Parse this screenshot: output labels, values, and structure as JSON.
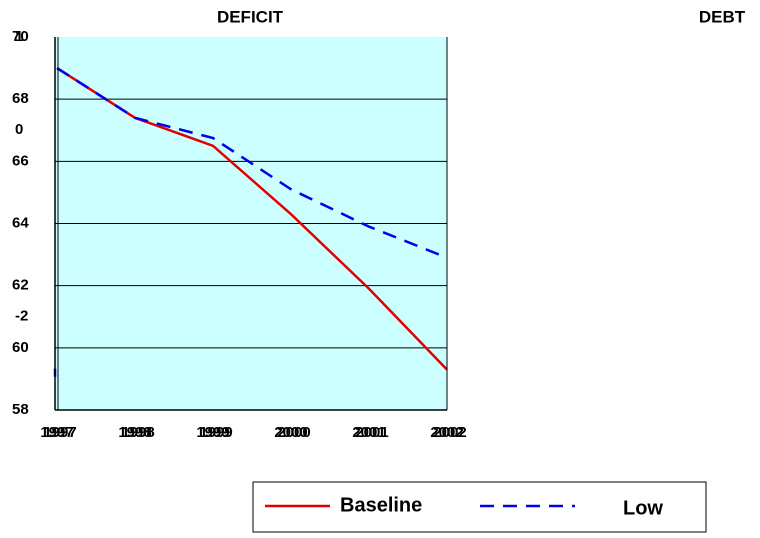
{
  "chart_data": [
    {
      "type": "line",
      "title": "DEFICIT",
      "categories": [
        "1997",
        "1998",
        "1999",
        "2000",
        "2001",
        "2002"
      ],
      "series": [
        {
          "name": "Low",
          "color": "#0000ee",
          "values": [
            -2.6,
            null,
            null,
            null,
            null,
            null
          ]
        }
      ],
      "ylim": [
        -3,
        1
      ],
      "yticks": [
        -2,
        0,
        1
      ]
    },
    {
      "type": "line",
      "title": "DEBT",
      "categories": [
        "1997",
        "1998",
        "1999",
        "2000",
        "2001",
        "2002"
      ],
      "series": [
        {
          "name": "Baseline",
          "color": "#e00000",
          "values": [
            69,
            67.4,
            66.5,
            64.3,
            61.9,
            59.3
          ]
        },
        {
          "name": "Low",
          "color": "#0000ee",
          "values": [
            69,
            67.4,
            66.75,
            65.1,
            63.9,
            62.9
          ]
        }
      ],
      "ylim": [
        58,
        70
      ],
      "yticks": [
        58,
        60,
        62,
        64,
        66,
        68,
        70
      ],
      "grid": true
    }
  ]
}
